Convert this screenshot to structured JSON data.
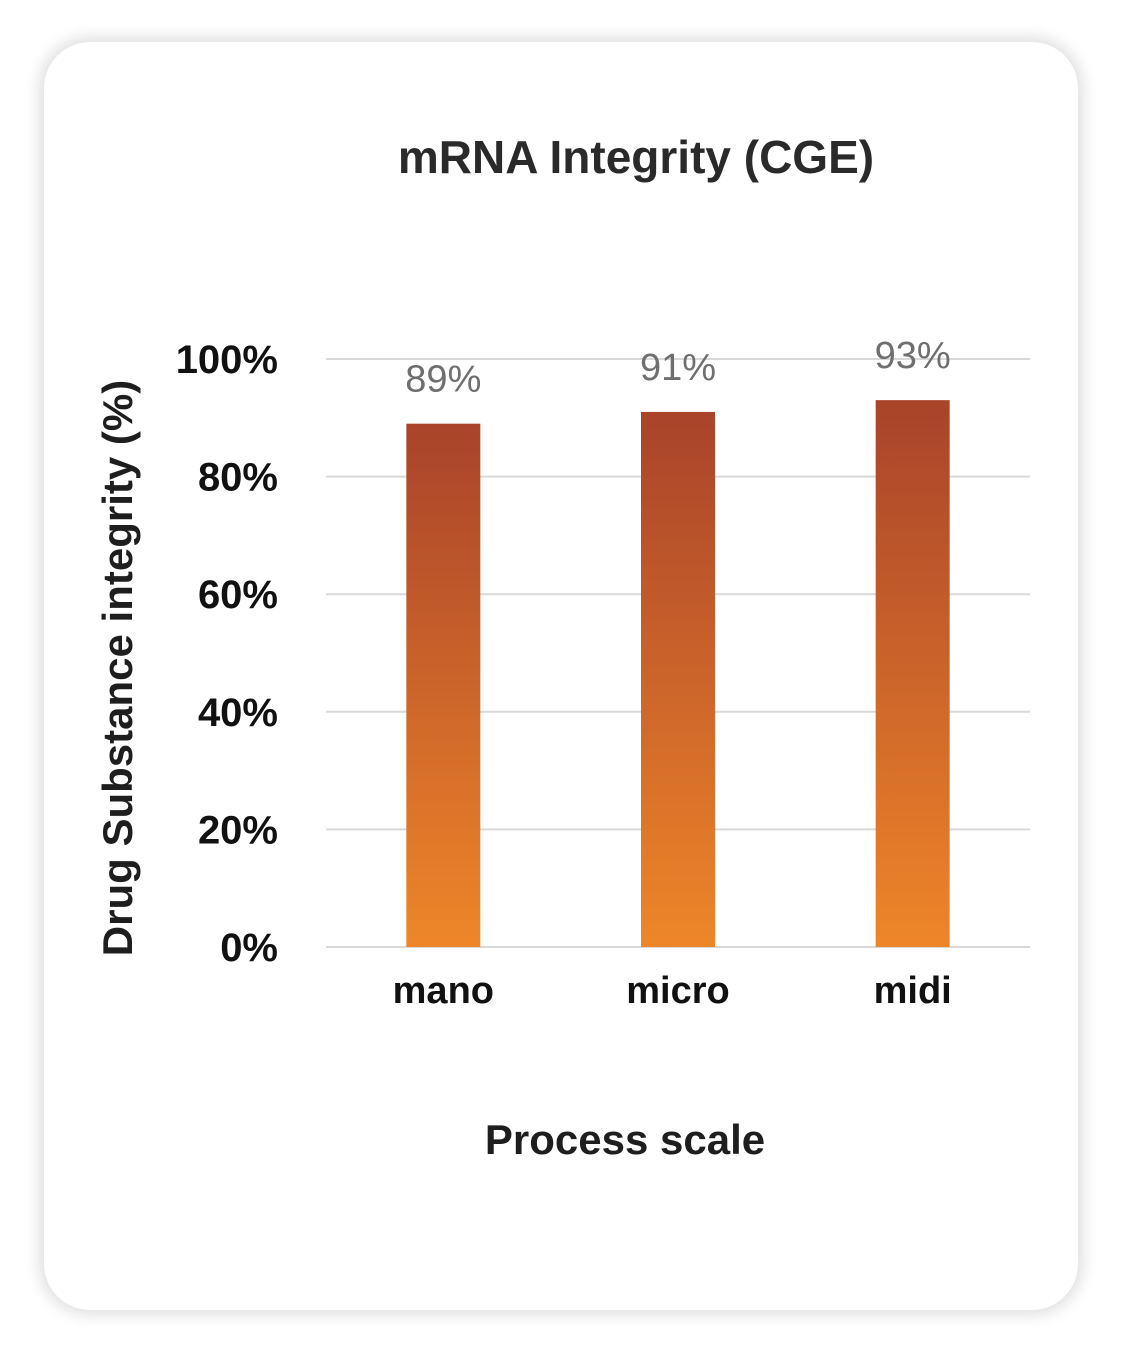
{
  "chart_data": {
    "type": "bar",
    "title": "mRNA Integrity (CGE)",
    "xlabel": "Process scale",
    "ylabel": "Drug Substance  integrity (%)",
    "categories": [
      "mano",
      "micro",
      "midi"
    ],
    "values": [
      89,
      91,
      93
    ],
    "data_labels": [
      "89%",
      "91%",
      "93%"
    ],
    "ylim": [
      0,
      100
    ],
    "yticks": [
      0,
      20,
      40,
      60,
      80,
      100
    ],
    "ytick_labels": [
      "0%",
      "20%",
      "40%",
      "60%",
      "80%",
      "100%"
    ],
    "grid": true,
    "legend": "none",
    "colors": {
      "bar_top": "#a9432a",
      "bar_bottom": "#ee8629",
      "grid": "#d9d9d9",
      "data_label": "#6f6f6f"
    }
  }
}
